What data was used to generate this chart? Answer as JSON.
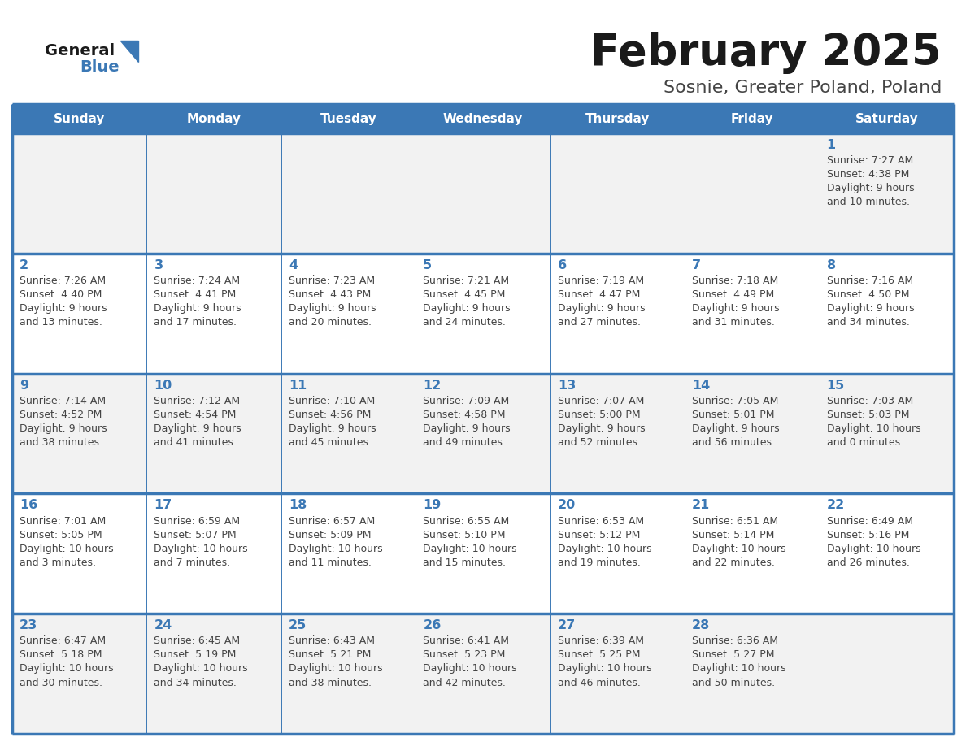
{
  "title": "February 2025",
  "subtitle": "Sosnie, Greater Poland, Poland",
  "days_of_week": [
    "Sunday",
    "Monday",
    "Tuesday",
    "Wednesday",
    "Thursday",
    "Friday",
    "Saturday"
  ],
  "header_bg_color": "#3b78b5",
  "header_text_color": "#ffffff",
  "cell_bg_even": "#f2f2f2",
  "cell_bg_odd": "#ffffff",
  "row_border_color": "#3b78b5",
  "col_border_color": "#c0c0c0",
  "day_number_color": "#3b78b5",
  "cell_text_color": "#444444",
  "title_color": "#1a1a1a",
  "subtitle_color": "#444444",
  "logo_general_color": "#1a1a1a",
  "logo_blue_color": "#3b78b5",
  "fig_bg": "#ffffff",
  "calendar_data": [
    {
      "day": 1,
      "col": 6,
      "row": 0,
      "sunrise": "7:27 AM",
      "sunset": "4:38 PM",
      "daylight_h": "9 hours",
      "daylight_m": "and 10 minutes."
    },
    {
      "day": 2,
      "col": 0,
      "row": 1,
      "sunrise": "7:26 AM",
      "sunset": "4:40 PM",
      "daylight_h": "9 hours",
      "daylight_m": "and 13 minutes."
    },
    {
      "day": 3,
      "col": 1,
      "row": 1,
      "sunrise": "7:24 AM",
      "sunset": "4:41 PM",
      "daylight_h": "9 hours",
      "daylight_m": "and 17 minutes."
    },
    {
      "day": 4,
      "col": 2,
      "row": 1,
      "sunrise": "7:23 AM",
      "sunset": "4:43 PM",
      "daylight_h": "9 hours",
      "daylight_m": "and 20 minutes."
    },
    {
      "day": 5,
      "col": 3,
      "row": 1,
      "sunrise": "7:21 AM",
      "sunset": "4:45 PM",
      "daylight_h": "9 hours",
      "daylight_m": "and 24 minutes."
    },
    {
      "day": 6,
      "col": 4,
      "row": 1,
      "sunrise": "7:19 AM",
      "sunset": "4:47 PM",
      "daylight_h": "9 hours",
      "daylight_m": "and 27 minutes."
    },
    {
      "day": 7,
      "col": 5,
      "row": 1,
      "sunrise": "7:18 AM",
      "sunset": "4:49 PM",
      "daylight_h": "9 hours",
      "daylight_m": "and 31 minutes."
    },
    {
      "day": 8,
      "col": 6,
      "row": 1,
      "sunrise": "7:16 AM",
      "sunset": "4:50 PM",
      "daylight_h": "9 hours",
      "daylight_m": "and 34 minutes."
    },
    {
      "day": 9,
      "col": 0,
      "row": 2,
      "sunrise": "7:14 AM",
      "sunset": "4:52 PM",
      "daylight_h": "9 hours",
      "daylight_m": "and 38 minutes."
    },
    {
      "day": 10,
      "col": 1,
      "row": 2,
      "sunrise": "7:12 AM",
      "sunset": "4:54 PM",
      "daylight_h": "9 hours",
      "daylight_m": "and 41 minutes."
    },
    {
      "day": 11,
      "col": 2,
      "row": 2,
      "sunrise": "7:10 AM",
      "sunset": "4:56 PM",
      "daylight_h": "9 hours",
      "daylight_m": "and 45 minutes."
    },
    {
      "day": 12,
      "col": 3,
      "row": 2,
      "sunrise": "7:09 AM",
      "sunset": "4:58 PM",
      "daylight_h": "9 hours",
      "daylight_m": "and 49 minutes."
    },
    {
      "day": 13,
      "col": 4,
      "row": 2,
      "sunrise": "7:07 AM",
      "sunset": "5:00 PM",
      "daylight_h": "9 hours",
      "daylight_m": "and 52 minutes."
    },
    {
      "day": 14,
      "col": 5,
      "row": 2,
      "sunrise": "7:05 AM",
      "sunset": "5:01 PM",
      "daylight_h": "9 hours",
      "daylight_m": "and 56 minutes."
    },
    {
      "day": 15,
      "col": 6,
      "row": 2,
      "sunrise": "7:03 AM",
      "sunset": "5:03 PM",
      "daylight_h": "10 hours",
      "daylight_m": "and 0 minutes."
    },
    {
      "day": 16,
      "col": 0,
      "row": 3,
      "sunrise": "7:01 AM",
      "sunset": "5:05 PM",
      "daylight_h": "10 hours",
      "daylight_m": "and 3 minutes."
    },
    {
      "day": 17,
      "col": 1,
      "row": 3,
      "sunrise": "6:59 AM",
      "sunset": "5:07 PM",
      "daylight_h": "10 hours",
      "daylight_m": "and 7 minutes."
    },
    {
      "day": 18,
      "col": 2,
      "row": 3,
      "sunrise": "6:57 AM",
      "sunset": "5:09 PM",
      "daylight_h": "10 hours",
      "daylight_m": "and 11 minutes."
    },
    {
      "day": 19,
      "col": 3,
      "row": 3,
      "sunrise": "6:55 AM",
      "sunset": "5:10 PM",
      "daylight_h": "10 hours",
      "daylight_m": "and 15 minutes."
    },
    {
      "day": 20,
      "col": 4,
      "row": 3,
      "sunrise": "6:53 AM",
      "sunset": "5:12 PM",
      "daylight_h": "10 hours",
      "daylight_m": "and 19 minutes."
    },
    {
      "day": 21,
      "col": 5,
      "row": 3,
      "sunrise": "6:51 AM",
      "sunset": "5:14 PM",
      "daylight_h": "10 hours",
      "daylight_m": "and 22 minutes."
    },
    {
      "day": 22,
      "col": 6,
      "row": 3,
      "sunrise": "6:49 AM",
      "sunset": "5:16 PM",
      "daylight_h": "10 hours",
      "daylight_m": "and 26 minutes."
    },
    {
      "day": 23,
      "col": 0,
      "row": 4,
      "sunrise": "6:47 AM",
      "sunset": "5:18 PM",
      "daylight_h": "10 hours",
      "daylight_m": "and 30 minutes."
    },
    {
      "day": 24,
      "col": 1,
      "row": 4,
      "sunrise": "6:45 AM",
      "sunset": "5:19 PM",
      "daylight_h": "10 hours",
      "daylight_m": "and 34 minutes."
    },
    {
      "day": 25,
      "col": 2,
      "row": 4,
      "sunrise": "6:43 AM",
      "sunset": "5:21 PM",
      "daylight_h": "10 hours",
      "daylight_m": "and 38 minutes."
    },
    {
      "day": 26,
      "col": 3,
      "row": 4,
      "sunrise": "6:41 AM",
      "sunset": "5:23 PM",
      "daylight_h": "10 hours",
      "daylight_m": "and 42 minutes."
    },
    {
      "day": 27,
      "col": 4,
      "row": 4,
      "sunrise": "6:39 AM",
      "sunset": "5:25 PM",
      "daylight_h": "10 hours",
      "daylight_m": "and 46 minutes."
    },
    {
      "day": 28,
      "col": 5,
      "row": 4,
      "sunrise": "6:36 AM",
      "sunset": "5:27 PM",
      "daylight_h": "10 hours",
      "daylight_m": "and 50 minutes."
    }
  ]
}
